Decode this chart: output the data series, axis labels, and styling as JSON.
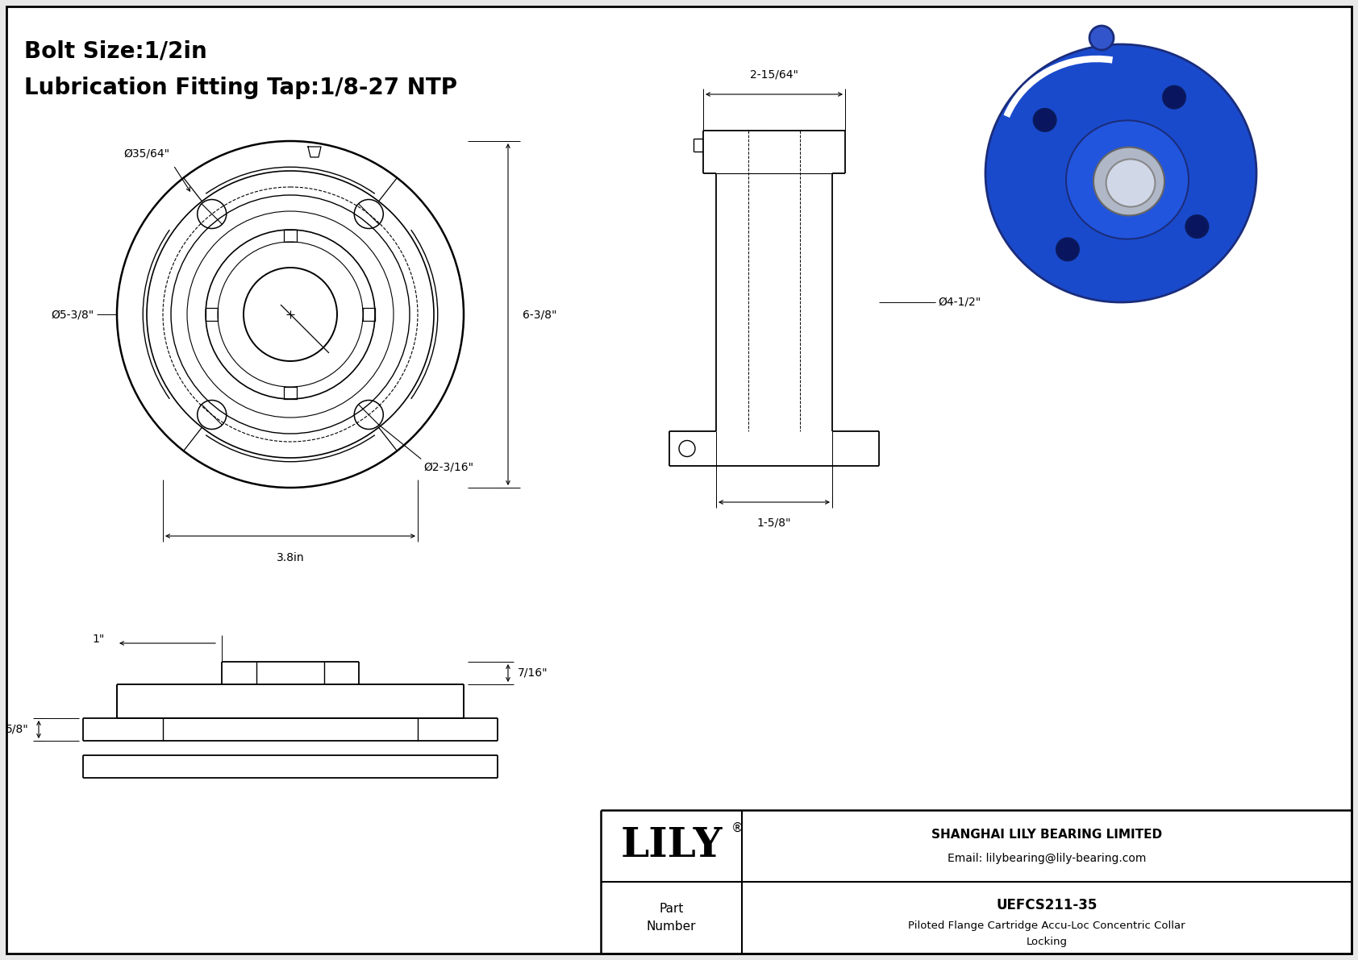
{
  "title_line1": "Bolt Size:1/2in",
  "title_line2": "Lubrication Fitting Tap:1/8-27 NTP",
  "background_color": "#ffffff",
  "line_color": "#000000",
  "company_name": "SHANGHAI LILY BEARING LIMITED",
  "company_email": "Email: lilybearing@lily-bearing.com",
  "part_number": "UEFCS211-35",
  "part_desc1": "Piloted Flange Cartridge Accu-Loc Concentric Collar",
  "part_desc2": "Locking",
  "brand": "LILY",
  "dim_35_64": "Ø35/64\"",
  "dim_5_38": "Ø5-3/8\"",
  "dim_6_38": "6-3/8\"",
  "dim_38in": "3.8in",
  "dim_2_316": "Ø2-3/16\"",
  "dim_2_1564": "2-15/64\"",
  "dim_4_12": "Ø4-1/2\"",
  "dim_1_58": "1-5/8\"",
  "dim_1in": "1\"",
  "dim_716": "7/16\"",
  "dim_58": "5/8\""
}
